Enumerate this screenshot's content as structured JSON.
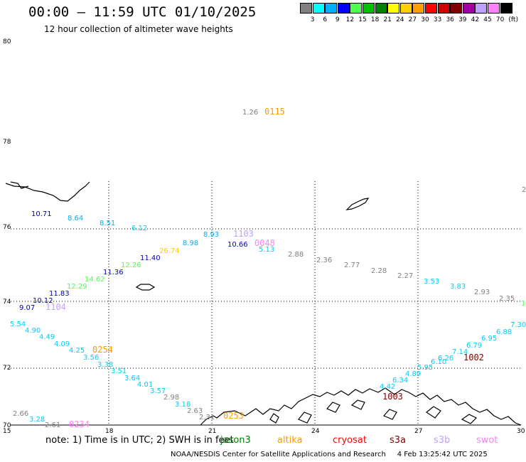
{
  "title": "00:00 – 11:59 UTC 01/10/2025",
  "subtitle": "12 hour collection of altimeter wave heights",
  "scale": {
    "labels": [
      "3",
      "6",
      "9",
      "12",
      "15",
      "18",
      "21",
      "24",
      "27",
      "30",
      "33",
      "36",
      "39",
      "42",
      "45",
      "70"
    ],
    "unit": "(ft)",
    "colors": [
      "#808080",
      "#00ffff",
      "#00b0ff",
      "#0000ff",
      "#50ff50",
      "#00c000",
      "#008000",
      "#ffff00",
      "#ffd000",
      "#ffa000",
      "#ff0000",
      "#d00000",
      "#800000",
      "#a000a0",
      "#c0a0ff",
      "#ff80ff",
      "#000000"
    ]
  },
  "axes": {
    "lat_labels": [
      "80",
      "78",
      "76",
      "74",
      "72",
      "70"
    ],
    "lon_labels": [
      "15",
      "18",
      "21",
      "24",
      "27",
      "30"
    ],
    "corner_label": "2"
  },
  "observations": [
    {
      "t": "1.26",
      "c": "#808080"
    },
    {
      "t": "0115",
      "c": "#ff9900"
    },
    {
      "t": "10.71",
      "c": "#0000c0"
    },
    {
      "t": "8.64",
      "c": "#00b0ff"
    },
    {
      "t": "8.51",
      "c": "#00b0ff"
    },
    {
      "t": "6.12",
      "c": "#00ccff"
    },
    {
      "t": "8.98",
      "c": "#00b0ff"
    },
    {
      "t": "8.93",
      "c": "#00b0ff"
    },
    {
      "t": "1103",
      "c": "#c0a0ff"
    },
    {
      "t": "10.66",
      "c": "#0000c0"
    },
    {
      "t": "0048",
      "c": "#ff80ff"
    },
    {
      "t": "5.13",
      "c": "#00ccff"
    },
    {
      "t": "26.74",
      "c": "#ffcc00"
    },
    {
      "t": "11.40",
      "c": "#0000c0"
    },
    {
      "t": "12.26",
      "c": "#50ff50"
    },
    {
      "t": "11.36",
      "c": "#0000c0"
    },
    {
      "t": "14.62",
      "c": "#50ff50"
    },
    {
      "t": "12.29",
      "c": "#50ff50"
    },
    {
      "t": "11.83",
      "c": "#0000c0"
    },
    {
      "t": "10.12",
      "c": "#0000c0"
    },
    {
      "t": "9.07",
      "c": "#0000c0"
    },
    {
      "t": "1104",
      "c": "#c0a0ff"
    },
    {
      "t": "2.88",
      "c": "#808080"
    },
    {
      "t": "2.36",
      "c": "#808080"
    },
    {
      "t": "2.77",
      "c": "#808080"
    },
    {
      "t": "2.28",
      "c": "#808080"
    },
    {
      "t": "2.27",
      "c": "#808080"
    },
    {
      "t": "3.53",
      "c": "#00ccff"
    },
    {
      "t": "3.83",
      "c": "#00ccff"
    },
    {
      "t": "2.93",
      "c": "#808080"
    },
    {
      "t": "2.35",
      "c": "#808080"
    },
    {
      "t": "1",
      "c": "#50ff50"
    },
    {
      "t": "5.54",
      "c": "#00ccff"
    },
    {
      "t": "4.90",
      "c": "#00ccff"
    },
    {
      "t": "4.49",
      "c": "#00ccff"
    },
    {
      "t": "4.09",
      "c": "#00ccff"
    },
    {
      "t": "4.25",
      "c": "#00ccff"
    },
    {
      "t": "0254",
      "c": "#ff9900"
    },
    {
      "t": "3.56",
      "c": "#00ccff"
    },
    {
      "t": "3.38",
      "c": "#00ccff"
    },
    {
      "t": "3.51",
      "c": "#00ccff"
    },
    {
      "t": "3.64",
      "c": "#00ccff"
    },
    {
      "t": "4.01",
      "c": "#00ccff"
    },
    {
      "t": "3.57",
      "c": "#00ccff"
    },
    {
      "t": "2.98",
      "c": "#808080"
    },
    {
      "t": "3.18",
      "c": "#00ccff"
    },
    {
      "t": "2.63",
      "c": "#808080"
    },
    {
      "t": "2.31",
      "c": "#808080"
    },
    {
      "t": "0253",
      "c": "#ff9900"
    },
    {
      "t": "2.66",
      "c": "#808080"
    },
    {
      "t": "3.28",
      "c": "#00ccff"
    },
    {
      "t": "2.61",
      "c": "#808080"
    },
    {
      "t": "0234",
      "c": "#ff80ff"
    },
    {
      "t": "7.30",
      "c": "#00ccff"
    },
    {
      "t": "6.88",
      "c": "#00ccff"
    },
    {
      "t": "6.95",
      "c": "#00ccff"
    },
    {
      "t": "6.79",
      "c": "#00ccff"
    },
    {
      "t": "7.14",
      "c": "#00ccff"
    },
    {
      "t": "1002",
      "c": "#800000"
    },
    {
      "t": "6.26",
      "c": "#00ccff"
    },
    {
      "t": "6.10",
      "c": "#00ccff"
    },
    {
      "t": "5.95",
      "c": "#00ccff"
    },
    {
      "t": "4.89",
      "c": "#00ccff"
    },
    {
      "t": "6.34",
      "c": "#00ccff"
    },
    {
      "t": "4.42",
      "c": "#00ccff"
    },
    {
      "t": "1003",
      "c": "#800000"
    }
  ],
  "note": "note: 1) Time is in UTC; 2) SWH is in feet",
  "satellites": [
    {
      "name": "jason3",
      "color": "#008000"
    },
    {
      "name": "altika",
      "color": "#ff9900"
    },
    {
      "name": "cryosat",
      "color": "#ff0000"
    },
    {
      "name": "s3a",
      "color": "#800000"
    },
    {
      "name": "s3b",
      "color": "#c0a0ff"
    },
    {
      "name": "swot",
      "color": "#ff80ff"
    }
  ],
  "credits": "NOAA/NESDIS Center for Satellite Applications and Research     4 Feb 13:25:42 UTC 2025"
}
